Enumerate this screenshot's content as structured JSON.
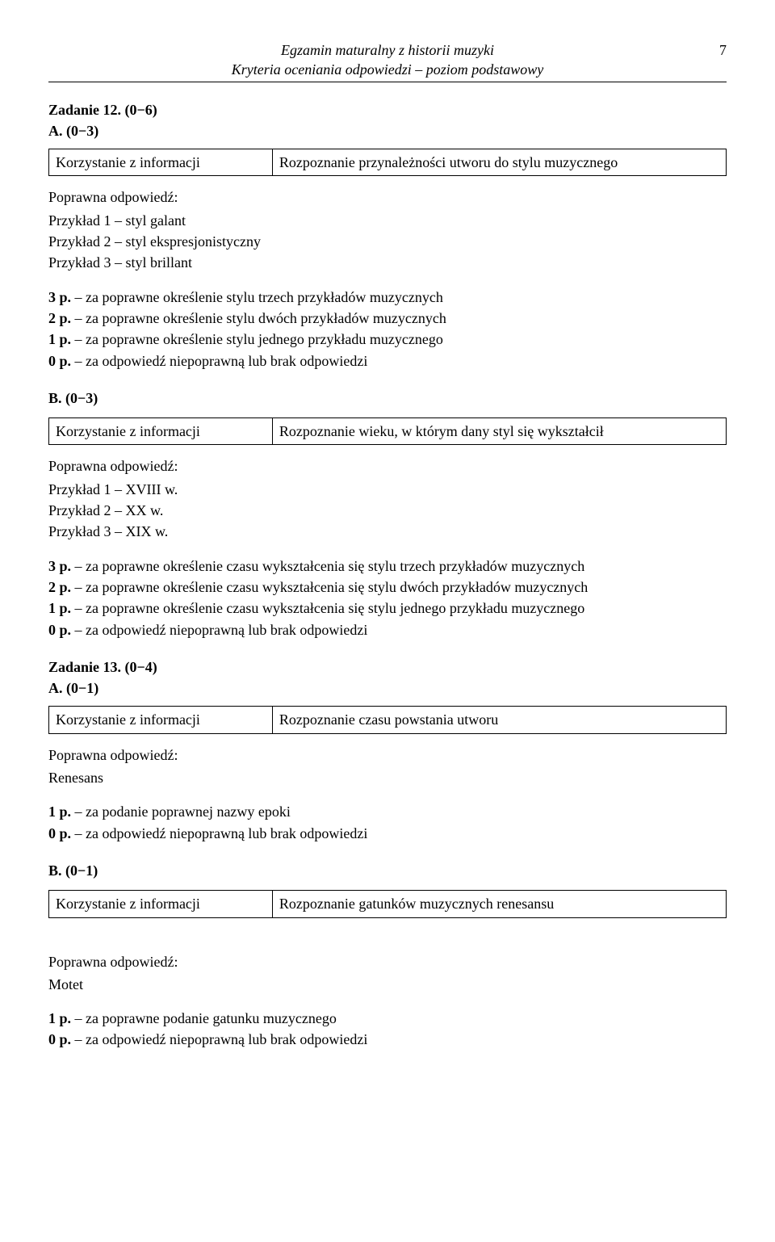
{
  "header": {
    "line1": "Egzamin maturalny z historii muzyki",
    "line2": "Kryteria oceniania odpowiedzi – poziom podstawowy",
    "page_number": "7"
  },
  "task12": {
    "heading": "Zadanie 12. (0−6)",
    "A": {
      "heading": "A. (0−3)",
      "box_left": "Korzystanie z informacji",
      "box_right": "Rozpoznanie przynależności utworu do stylu muzycznego",
      "answer_label": "Poprawna odpowiedź:",
      "answers": [
        "Przykład 1 – styl galant",
        "Przykład 2 – styl ekspresjonistyczny",
        "Przykład 3 – styl brillant"
      ],
      "scoring": [
        "3 p. – za poprawne określenie stylu trzech przykładów muzycznych",
        "2 p. – za poprawne określenie stylu dwóch przykładów muzycznych",
        "1 p. – za poprawne określenie stylu jednego przykładu muzycznego",
        "0 p. – za odpowiedź niepoprawną lub brak odpowiedzi"
      ]
    },
    "B": {
      "heading": "B. (0−3)",
      "box_left": "Korzystanie z informacji",
      "box_right": "Rozpoznanie wieku, w którym dany styl się wykształcił",
      "answer_label": "Poprawna odpowiedź:",
      "answers": [
        "Przykład 1 – XVIII w.",
        "Przykład 2 – XX w.",
        "Przykład 3 – XIX w."
      ],
      "scoring": [
        "3 p. – za poprawne określenie czasu wykształcenia się stylu trzech przykładów muzycznych",
        "2 p. – za poprawne określenie czasu wykształcenia się stylu dwóch przykładów muzycznych",
        "1 p. – za poprawne określenie czasu wykształcenia się stylu jednego przykładu muzycznego",
        "0 p. – za odpowiedź niepoprawną lub brak odpowiedzi"
      ]
    }
  },
  "task13": {
    "heading": "Zadanie 13. (0−4)",
    "A": {
      "heading": "A. (0−1)",
      "box_left": "Korzystanie z informacji",
      "box_right": "Rozpoznanie czasu powstania utworu",
      "answer_label": "Poprawna odpowiedź:",
      "answer": "Renesans",
      "scoring": [
        "1 p. – za podanie poprawnej nazwy epoki",
        "0 p. – za odpowiedź niepoprawną lub brak odpowiedzi"
      ]
    },
    "B": {
      "heading": "B. (0−1)",
      "box_left": "Korzystanie z informacji",
      "box_right": "Rozpoznanie gatunków  muzycznych renesansu",
      "answer_label": "Poprawna odpowiedź:",
      "answer": "Motet",
      "scoring": [
        "1 p. – za poprawne podanie gatunku muzycznego",
        "0 p. – za odpowiedź niepoprawną lub brak odpowiedzi"
      ]
    }
  },
  "scoring_prefixes": [
    "3 p.",
    "2 p.",
    "1 p.",
    "0 p."
  ]
}
